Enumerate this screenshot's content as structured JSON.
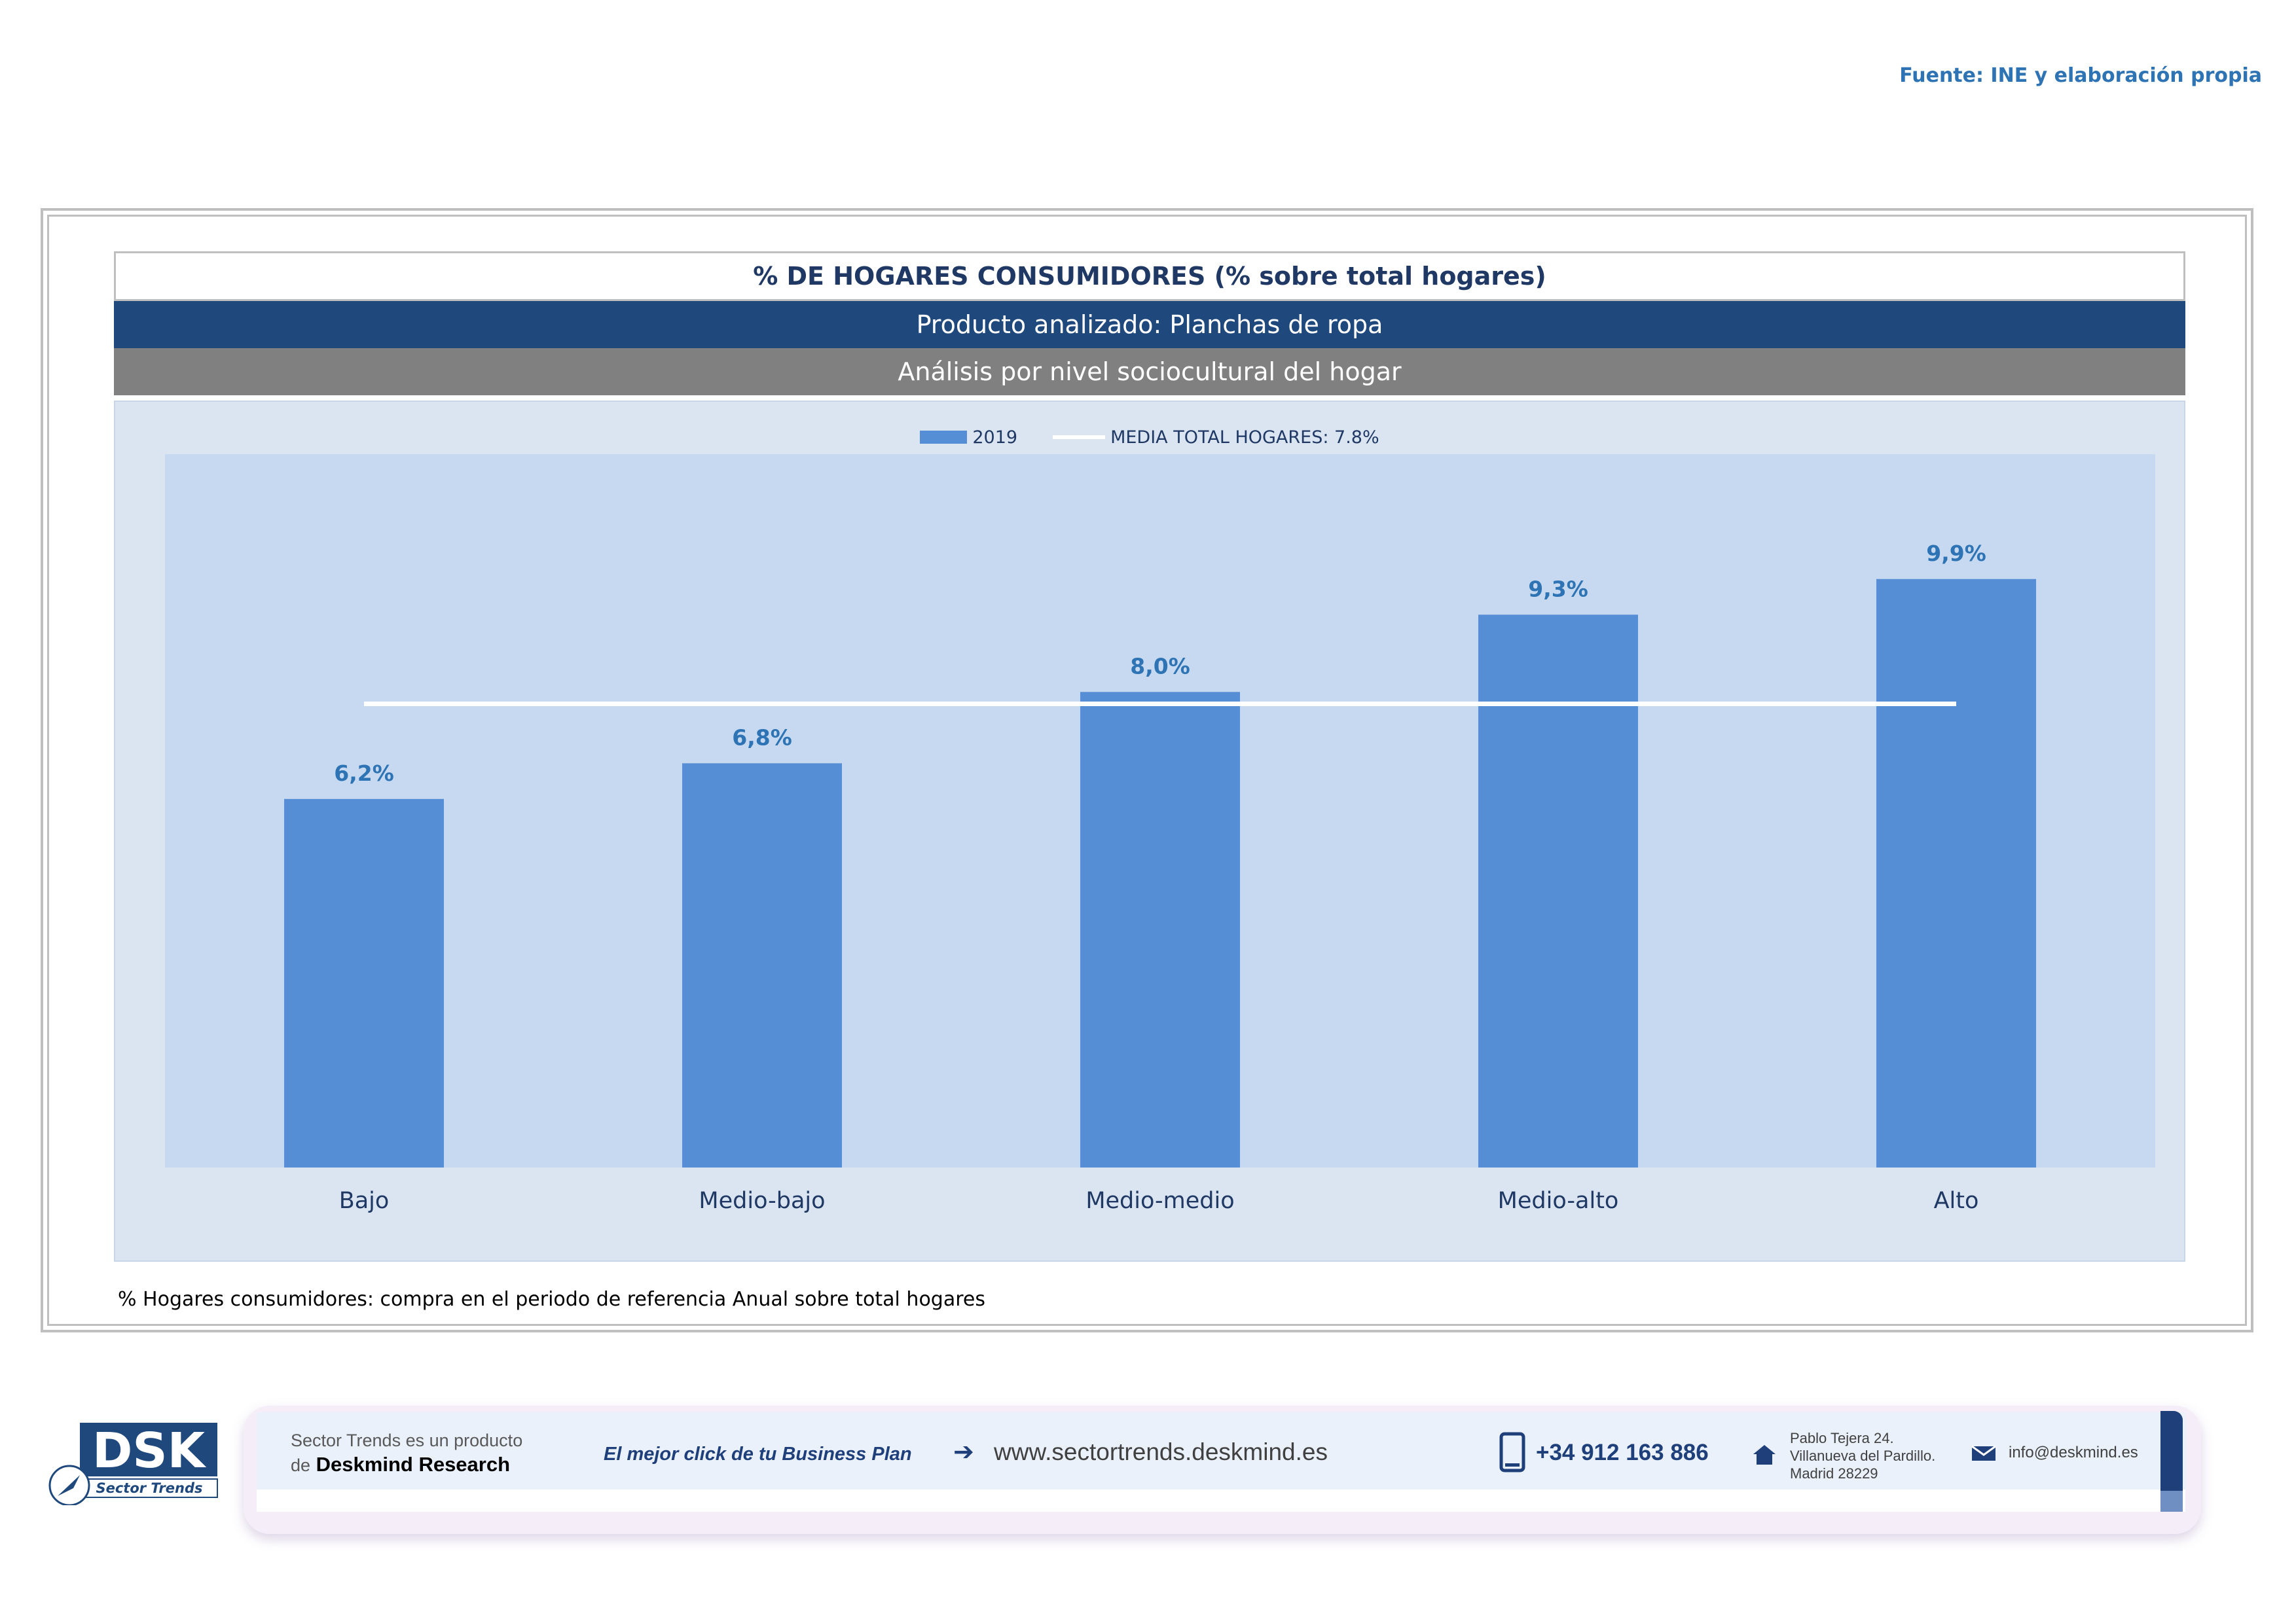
{
  "source": "Fuente: INE y elaboración propia",
  "header": {
    "title": "% DE HOGARES CONSUMIDORES (% sobre total hogares)",
    "product": "Producto analizado: Planchas de ropa",
    "analysis": "Análisis por nivel sociocultural del hogar"
  },
  "legend": {
    "bar_label": "2019",
    "line_label": "MEDIA TOTAL  HOGARES:  7.8%"
  },
  "chart_data": {
    "type": "bar",
    "categories": [
      "Bajo",
      "Medio-bajo",
      "Medio-medio",
      "Medio-alto",
      "Alto"
    ],
    "series": [
      {
        "name": "2019",
        "values": [
          6.2,
          6.8,
          8.0,
          9.3,
          9.9
        ],
        "labels": [
          "6,2%",
          "6,8%",
          "8,0%",
          "9,3%",
          "9,9%"
        ],
        "color": "#558ed5"
      }
    ],
    "reference_line": {
      "name": "MEDIA TOTAL  HOGARES:  7.8%",
      "value": 7.8,
      "color": "#ffffff"
    },
    "ylim": [
      0,
      12
    ],
    "grid": false,
    "legend_position": "top",
    "plot_background": "#c6d9f1",
    "label_color": "#2e74b5"
  },
  "note": "% Hogares consumidores: compra en el periodo de referencia Anual sobre total hogares",
  "footer": {
    "logo_text": "DSK",
    "logo_sub": "Sector Trends",
    "tagline_1": "Sector Trends es un producto",
    "tagline_2_prefix": "de",
    "tagline_2_brand": "Deskmind Research",
    "slogan": "El mejor click de tu Business Plan",
    "website": "www.sectortrends.deskmind.es",
    "phone": "+34 912 163 886",
    "address_1": "Pablo Tejera 24.",
    "address_2": "Villanueva del Pardillo.",
    "address_3": "Madrid 28229",
    "email": "info@deskmind.es"
  }
}
